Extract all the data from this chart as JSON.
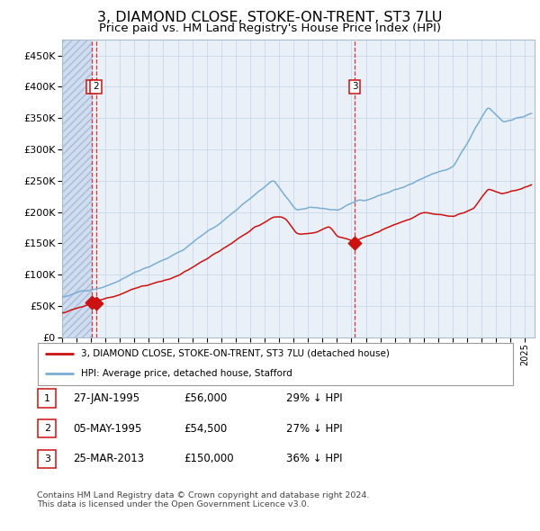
{
  "title": "3, DIAMOND CLOSE, STOKE-ON-TRENT, ST3 7LU",
  "subtitle": "Price paid vs. HM Land Registry's House Price Index (HPI)",
  "title_fontsize": 11.5,
  "subtitle_fontsize": 9.5,
  "sale_points": [
    {
      "label": "1",
      "date": "1995-01-27",
      "price": 56000,
      "date_str": "27-JAN-1995",
      "hpi_pct": "29% ↓ HPI"
    },
    {
      "label": "2",
      "date": "1995-05-05",
      "price": 54500,
      "date_str": "05-MAY-1995",
      "hpi_pct": "27% ↓ HPI"
    },
    {
      "label": "3",
      "date": "2013-03-25",
      "price": 150000,
      "date_str": "25-MAR-2013",
      "hpi_pct": "36% ↓ HPI"
    }
  ],
  "hpi_line_color": "#7AADD4",
  "property_line_color": "#CC1111",
  "sale_marker_color": "#CC1111",
  "sale_label_border": "#CC1111",
  "vline_color": "#DD3333",
  "background_plot": "#EAF0F8",
  "grid_color": "#C8D8E8",
  "ylim": [
    0,
    475000
  ],
  "yticks": [
    0,
    50000,
    100000,
    150000,
    200000,
    250000,
    300000,
    350000,
    400000,
    450000
  ],
  "legend_line1": "3, DIAMOND CLOSE, STOKE-ON-TRENT, ST3 7LU (detached house)",
  "legend_line2": "HPI: Average price, detached house, Stafford",
  "footer": "Contains HM Land Registry data © Crown copyright and database right 2024.\nThis data is licensed under the Open Government Licence v3.0.",
  "table_rows": [
    [
      "1",
      "27-JAN-1995",
      "£56,000",
      "29% ↓ HPI"
    ],
    [
      "2",
      "05-MAY-1995",
      "£54,500",
      "27% ↓ HPI"
    ],
    [
      "3",
      "25-MAR-2013",
      "£150,000",
      "36% ↓ HPI"
    ]
  ]
}
